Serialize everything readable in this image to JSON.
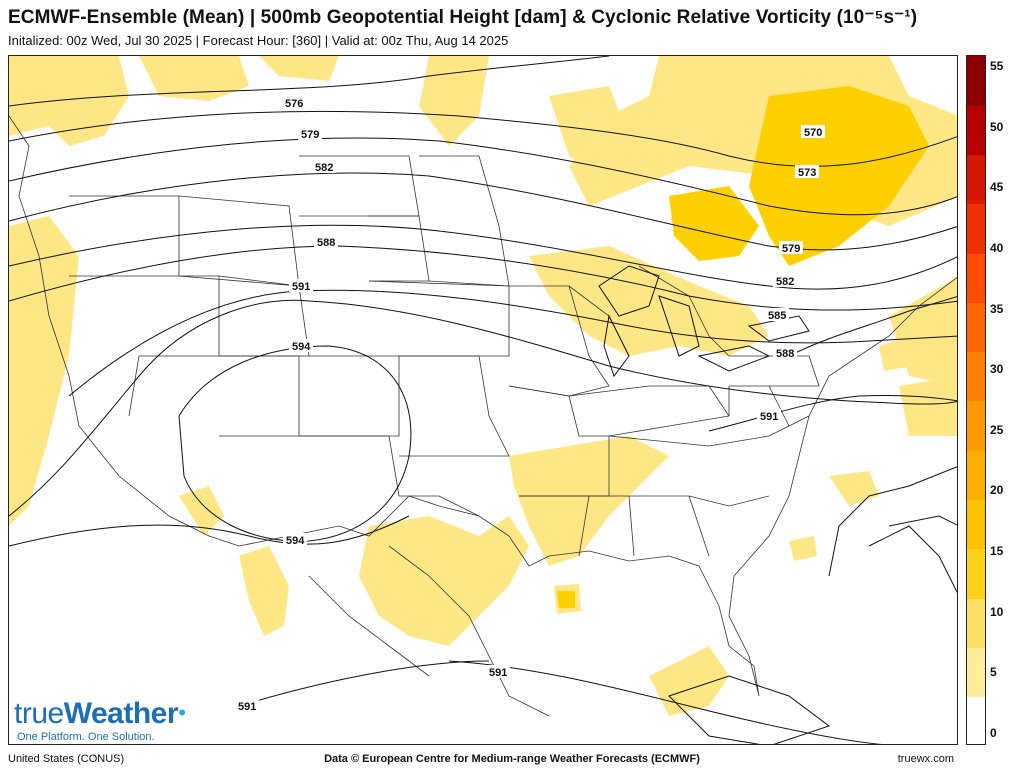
{
  "header": {
    "title": "ECMWF-Ensemble (Mean) | 500mb Geopotential Height [dam] & Cyclonic Relative Vorticity (10⁻⁵s⁻¹)",
    "subtitle": "Initalized: 00z Wed, Jul 30 2025  |  Forecast Hour: [360]  |  Valid at: 00z Thu, Aug 14 2025"
  },
  "map": {
    "contours": [
      {
        "label": "576"
      },
      {
        "label": "579"
      },
      {
        "label": "582"
      },
      {
        "label": "588"
      },
      {
        "label": "591"
      },
      {
        "label": "594"
      },
      {
        "label": "570"
      },
      {
        "label": "573"
      },
      {
        "label": "579"
      },
      {
        "label": "582"
      },
      {
        "label": "585"
      },
      {
        "label": "588"
      },
      {
        "label": "591"
      },
      {
        "label": "594"
      },
      {
        "label": "591"
      },
      {
        "label": "591"
      }
    ]
  },
  "colorbar": {
    "ticks": [
      "55",
      "50",
      "45",
      "40",
      "35",
      "30",
      "25",
      "20",
      "15",
      "10",
      "5",
      "0"
    ],
    "colors": [
      "#ffffff",
      "#ffee99",
      "#ffe066",
      "#ffd21a",
      "#ffc200",
      "#ffad00",
      "#ff9900",
      "#ff8000",
      "#ff6600",
      "#ff4d00",
      "#f03000",
      "#d81800",
      "#b80000",
      "#8c0000"
    ]
  },
  "branding": {
    "logo_true": "true",
    "logo_weather": "Weather",
    "tagline": "One Platform. One Solution."
  },
  "footer": {
    "left": "United States (CONUS)",
    "center": "Data © European Centre for Medium-range Weather Forecasts (ECMWF)",
    "right": "truewx.com"
  }
}
